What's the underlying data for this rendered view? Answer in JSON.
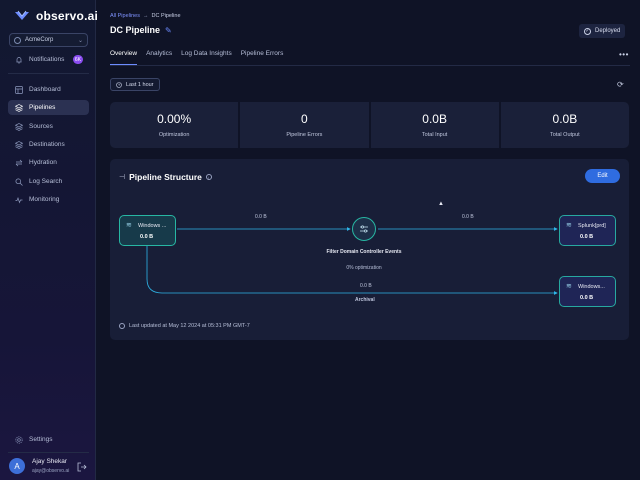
{
  "brand": {
    "name": "observo.ai"
  },
  "org": {
    "name": "AcmeCorp"
  },
  "sidebar": {
    "notifications": {
      "label": "Notifications",
      "badge": "6K"
    },
    "items": [
      {
        "label": "Dashboard",
        "icon": "dashboard-icon"
      },
      {
        "label": "Pipelines",
        "icon": "pipelines-icon",
        "active": true
      },
      {
        "label": "Sources",
        "icon": "sources-icon"
      },
      {
        "label": "Destinations",
        "icon": "destinations-icon"
      },
      {
        "label": "Hydration",
        "icon": "hydration-icon"
      },
      {
        "label": "Log Search",
        "icon": "log-search-icon"
      },
      {
        "label": "Monitoring",
        "icon": "monitoring-icon"
      }
    ],
    "settings": "Settings",
    "user": {
      "initial": "A",
      "name": "Ajay Shekar",
      "email": "ajay@observo.ai"
    }
  },
  "breadcrumb": {
    "parent": "All Pipelines",
    "separator": "→",
    "current": "DC Pipeline"
  },
  "page": {
    "title": "DC Pipeline",
    "status": "Deployed"
  },
  "tabs": [
    "Overview",
    "Analytics",
    "Log Data Insights",
    "Pipeline Errors"
  ],
  "time_filter": "Last 1 hour",
  "stats": [
    {
      "value": "0.00%",
      "label": "Optimization"
    },
    {
      "value": "0",
      "label": "Pipeline Errors"
    },
    {
      "value": "0.0B",
      "label": "Total Input"
    },
    {
      "value": "0.0B",
      "label": "Total Output"
    }
  ],
  "structure": {
    "title": "Pipeline Structure",
    "edit_label": "Edit",
    "source": {
      "name": "Windows ...",
      "value": "0.0 B"
    },
    "filter": {
      "name": "Filter Domain Controller Events",
      "sub": "0% optimization"
    },
    "dest1": {
      "name": "Splunk[prd]",
      "value": "0.0 B"
    },
    "dest2": {
      "name": "Windows...",
      "value": "0.0 B"
    },
    "edges": {
      "to_filter": "0.0 B",
      "to_splunk": "0.0 B",
      "archival_value": "0.0 B",
      "archival_name": "Archival"
    },
    "updated": "Last updated at May 12 2024 at 05:31 PM GMT-7"
  },
  "colors": {
    "accent": "#2f6ce0",
    "edge": "#2fb5e8",
    "node_border": "#27b7a3"
  }
}
